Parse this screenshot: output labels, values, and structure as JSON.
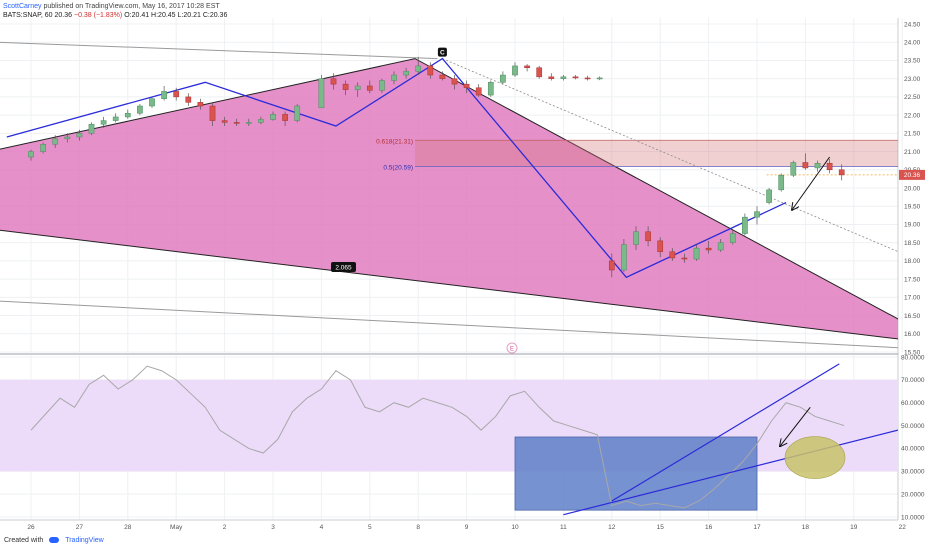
{
  "header": {
    "author": "ScottCarney",
    "published": "published on TradingView.com, May 16, 2017 10:28 EST",
    "symbol": "BATS:SNAP, 60",
    "last": "20.36",
    "change": "−0.38 (−1.83%)",
    "ohlc": "O:20.41  H:20.45  L:20.21  C:20.36"
  },
  "footer": {
    "created_with": "Created with",
    "brand": "TradingView"
  },
  "colors": {
    "pattern_fill": "#e07dbf",
    "zone_fill": "#d8787f",
    "pattern_line": "#2b2bd9",
    "up_candle": "#79b98a",
    "down_candle": "#d9534f",
    "rsi_band": "#ecdcf9",
    "rsi_box": "#5f7fc8",
    "ellipse": "#c8c26a"
  },
  "chart_data": [
    {
      "type": "candlestick",
      "title": "BATS:SNAP, 60",
      "ylim": [
        15.5,
        24.5
      ],
      "x_tick_labels": [
        "26",
        "27",
        "28",
        "May",
        "2",
        "3",
        "4",
        "5",
        "8",
        "9",
        "10",
        "11",
        "12",
        "15",
        "16",
        "17",
        "18",
        "19",
        "22"
      ],
      "y_tick_labels": [
        "24.50",
        "24.00",
        "23.50",
        "23.00",
        "22.50",
        "22.00",
        "21.50",
        "21.00",
        "20.50",
        "20.00",
        "19.50",
        "19.00",
        "18.50",
        "18.00",
        "17.50",
        "17.00",
        "16.50",
        "16.00",
        "15.50"
      ],
      "candles": [
        {
          "x": 0.0,
          "o": 20.85,
          "h": 21.05,
          "l": 20.75,
          "c": 21.0
        },
        {
          "x": 0.25,
          "o": 21.0,
          "h": 21.25,
          "l": 20.95,
          "c": 21.2
        },
        {
          "x": 0.5,
          "o": 21.2,
          "h": 21.45,
          "l": 21.1,
          "c": 21.35
        },
        {
          "x": 0.75,
          "o": 21.35,
          "h": 21.5,
          "l": 21.25,
          "c": 21.4
        },
        {
          "x": 1.0,
          "o": 21.4,
          "h": 21.6,
          "l": 21.3,
          "c": 21.5
        },
        {
          "x": 1.25,
          "o": 21.5,
          "h": 21.8,
          "l": 21.45,
          "c": 21.75
        },
        {
          "x": 1.5,
          "o": 21.75,
          "h": 21.95,
          "l": 21.65,
          "c": 21.85
        },
        {
          "x": 1.75,
          "o": 21.85,
          "h": 22.05,
          "l": 21.8,
          "c": 21.95
        },
        {
          "x": 2.0,
          "o": 21.95,
          "h": 22.15,
          "l": 21.9,
          "c": 22.05
        },
        {
          "x": 2.25,
          "o": 22.05,
          "h": 22.3,
          "l": 22.0,
          "c": 22.25
        },
        {
          "x": 2.5,
          "o": 22.25,
          "h": 22.5,
          "l": 22.2,
          "c": 22.45
        },
        {
          "x": 2.75,
          "o": 22.45,
          "h": 22.8,
          "l": 22.4,
          "c": 22.65
        },
        {
          "x": 3.0,
          "o": 22.65,
          "h": 22.75,
          "l": 22.4,
          "c": 22.5
        },
        {
          "x": 3.25,
          "o": 22.5,
          "h": 22.6,
          "l": 22.25,
          "c": 22.35
        },
        {
          "x": 3.5,
          "o": 22.35,
          "h": 22.45,
          "l": 22.15,
          "c": 22.25
        },
        {
          "x": 3.75,
          "o": 22.25,
          "h": 22.35,
          "l": 21.7,
          "c": 21.85
        },
        {
          "x": 4.0,
          "o": 21.85,
          "h": 21.95,
          "l": 21.7,
          "c": 21.8
        },
        {
          "x": 4.25,
          "o": 21.8,
          "h": 21.9,
          "l": 21.7,
          "c": 21.78
        },
        {
          "x": 4.5,
          "o": 21.78,
          "h": 21.9,
          "l": 21.7,
          "c": 21.8
        },
        {
          "x": 4.75,
          "o": 21.8,
          "h": 21.95,
          "l": 21.75,
          "c": 21.88
        },
        {
          "x": 5.0,
          "o": 21.88,
          "h": 22.1,
          "l": 21.85,
          "c": 22.02
        },
        {
          "x": 5.25,
          "o": 22.02,
          "h": 22.1,
          "l": 21.7,
          "c": 21.85
        },
        {
          "x": 5.5,
          "o": 21.85,
          "h": 22.3,
          "l": 21.8,
          "c": 22.25
        },
        {
          "x": 6.0,
          "o": 22.2,
          "h": 23.1,
          "l": 22.2,
          "c": 23.0
        },
        {
          "x": 6.25,
          "o": 23.0,
          "h": 23.15,
          "l": 22.7,
          "c": 22.85
        },
        {
          "x": 6.5,
          "o": 22.85,
          "h": 22.95,
          "l": 22.55,
          "c": 22.7
        },
        {
          "x": 6.75,
          "o": 22.7,
          "h": 22.9,
          "l": 22.5,
          "c": 22.8
        },
        {
          "x": 7.0,
          "o": 22.8,
          "h": 22.95,
          "l": 22.6,
          "c": 22.68
        },
        {
          "x": 7.25,
          "o": 22.68,
          "h": 23.0,
          "l": 22.6,
          "c": 22.95
        },
        {
          "x": 7.5,
          "o": 22.95,
          "h": 23.2,
          "l": 22.85,
          "c": 23.1
        },
        {
          "x": 7.75,
          "o": 23.1,
          "h": 23.3,
          "l": 23.0,
          "c": 23.2
        },
        {
          "x": 8.0,
          "o": 23.2,
          "h": 23.6,
          "l": 23.1,
          "c": 23.35
        },
        {
          "x": 8.25,
          "o": 23.35,
          "h": 23.45,
          "l": 23.0,
          "c": 23.1
        },
        {
          "x": 8.5,
          "o": 23.1,
          "h": 23.2,
          "l": 22.95,
          "c": 23.0
        },
        {
          "x": 8.75,
          "o": 23.0,
          "h": 23.1,
          "l": 22.7,
          "c": 22.85
        },
        {
          "x": 9.0,
          "o": 22.85,
          "h": 22.95,
          "l": 22.6,
          "c": 22.75
        },
        {
          "x": 9.25,
          "o": 22.75,
          "h": 22.85,
          "l": 22.5,
          "c": 22.55
        },
        {
          "x": 9.5,
          "o": 22.55,
          "h": 22.95,
          "l": 22.5,
          "c": 22.9
        },
        {
          "x": 9.75,
          "o": 22.9,
          "h": 23.2,
          "l": 22.85,
          "c": 23.1
        },
        {
          "x": 10.0,
          "o": 23.1,
          "h": 23.45,
          "l": 23.05,
          "c": 23.35
        },
        {
          "x": 10.25,
          "o": 23.35,
          "h": 23.4,
          "l": 23.2,
          "c": 23.3
        },
        {
          "x": 10.5,
          "o": 23.3,
          "h": 23.35,
          "l": 23.0,
          "c": 23.05
        },
        {
          "x": 10.75,
          "o": 23.05,
          "h": 23.15,
          "l": 22.95,
          "c": 23.0
        },
        {
          "x": 11.0,
          "o": 23.0,
          "h": 23.1,
          "l": 22.95,
          "c": 23.05
        },
        {
          "x": 11.25,
          "o": 23.05,
          "h": 23.1,
          "l": 22.98,
          "c": 23.02
        },
        {
          "x": 11.5,
          "o": 23.02,
          "h": 23.08,
          "l": 22.95,
          "c": 23.0
        },
        {
          "x": 11.75,
          "o": 23.0,
          "h": 23.06,
          "l": 22.96,
          "c": 23.02
        },
        {
          "x": 12.0,
          "o": 18.0,
          "h": 18.2,
          "l": 17.55,
          "c": 17.75
        },
        {
          "x": 12.25,
          "o": 17.75,
          "h": 18.6,
          "l": 17.7,
          "c": 18.45
        },
        {
          "x": 12.5,
          "o": 18.45,
          "h": 18.95,
          "l": 18.3,
          "c": 18.8
        },
        {
          "x": 12.75,
          "o": 18.8,
          "h": 18.95,
          "l": 18.4,
          "c": 18.55
        },
        {
          "x": 13.0,
          "o": 18.55,
          "h": 18.65,
          "l": 18.1,
          "c": 18.25
        },
        {
          "x": 13.25,
          "o": 18.25,
          "h": 18.35,
          "l": 18.0,
          "c": 18.08
        },
        {
          "x": 13.5,
          "o": 18.08,
          "h": 18.2,
          "l": 17.95,
          "c": 18.05
        },
        {
          "x": 13.75,
          "o": 18.05,
          "h": 18.45,
          "l": 18.0,
          "c": 18.35
        },
        {
          "x": 14.0,
          "o": 18.35,
          "h": 18.55,
          "l": 18.2,
          "c": 18.3
        },
        {
          "x": 14.25,
          "o": 18.3,
          "h": 18.6,
          "l": 18.25,
          "c": 18.5
        },
        {
          "x": 14.5,
          "o": 18.5,
          "h": 18.85,
          "l": 18.45,
          "c": 18.75
        },
        {
          "x": 14.75,
          "o": 18.75,
          "h": 19.3,
          "l": 18.7,
          "c": 19.2
        },
        {
          "x": 15.0,
          "o": 19.2,
          "h": 19.5,
          "l": 19.0,
          "c": 19.35
        },
        {
          "x": 15.25,
          "o": 19.6,
          "h": 20.0,
          "l": 19.55,
          "c": 19.95
        },
        {
          "x": 15.5,
          "o": 19.95,
          "h": 20.4,
          "l": 19.9,
          "c": 20.35
        },
        {
          "x": 15.75,
          "o": 20.35,
          "h": 20.75,
          "l": 20.3,
          "c": 20.7
        },
        {
          "x": 16.0,
          "o": 20.7,
          "h": 20.95,
          "l": 20.5,
          "c": 20.55
        },
        {
          "x": 16.25,
          "o": 20.55,
          "h": 20.75,
          "l": 20.45,
          "c": 20.68
        },
        {
          "x": 16.5,
          "o": 20.68,
          "h": 20.8,
          "l": 20.4,
          "c": 20.5
        },
        {
          "x": 16.75,
          "o": 20.5,
          "h": 20.65,
          "l": 20.21,
          "c": 20.36
        }
      ],
      "pattern": {
        "points": [
          {
            "label": "",
            "x": -0.5,
            "y": 21.4
          },
          {
            "label": "",
            "x": 3.6,
            "y": 22.9
          },
          {
            "label": "",
            "x": 6.3,
            "y": 21.7
          },
          {
            "label": "C",
            "x": 8.5,
            "y": 23.55
          },
          {
            "label": "",
            "x": 12.3,
            "y": 17.55
          },
          {
            "label": "",
            "x": 15.6,
            "y": 19.6
          }
        ],
        "projection_label": "E",
        "extension_label": "2.065",
        "retracement_labels": [
          "0.618(21.31)",
          "0.5(20.59)"
        ],
        "prz": [
          20.59,
          21.31
        ]
      }
    },
    {
      "type": "line",
      "title": "RSI",
      "ylim": [
        10,
        80
      ],
      "y_tick_labels": [
        "80.0000",
        "70.0000",
        "60.0000",
        "50.0000",
        "40.0000",
        "30.0000",
        "20.0000",
        "10.0000"
      ],
      "overbought_band": [
        30,
        70
      ],
      "values": [
        [
          0,
          48
        ],
        [
          0.3,
          55
        ],
        [
          0.6,
          62
        ],
        [
          0.9,
          58
        ],
        [
          1.2,
          68
        ],
        [
          1.5,
          72
        ],
        [
          1.8,
          66
        ],
        [
          2.1,
          70
        ],
        [
          2.4,
          76
        ],
        [
          2.7,
          74
        ],
        [
          3.0,
          70
        ],
        [
          3.3,
          64
        ],
        [
          3.6,
          58
        ],
        [
          3.9,
          48
        ],
        [
          4.2,
          44
        ],
        [
          4.5,
          40
        ],
        [
          4.8,
          38
        ],
        [
          5.1,
          44
        ],
        [
          5.4,
          56
        ],
        [
          5.7,
          62
        ],
        [
          6.0,
          66
        ],
        [
          6.3,
          74
        ],
        [
          6.6,
          70
        ],
        [
          6.9,
          58
        ],
        [
          7.2,
          56
        ],
        [
          7.5,
          60
        ],
        [
          7.8,
          58
        ],
        [
          8.1,
          62
        ],
        [
          8.4,
          60
        ],
        [
          8.7,
          58
        ],
        [
          9.0,
          54
        ],
        [
          9.3,
          48
        ],
        [
          9.6,
          54
        ],
        [
          9.9,
          63
        ],
        [
          10.2,
          65
        ],
        [
          10.5,
          58
        ],
        [
          10.8,
          52
        ],
        [
          11.1,
          50
        ],
        [
          11.4,
          48
        ],
        [
          11.7,
          46
        ],
        [
          12.0,
          15
        ],
        [
          12.3,
          17
        ],
        [
          12.6,
          15
        ],
        [
          12.9,
          16
        ],
        [
          13.2,
          15
        ],
        [
          13.5,
          14
        ],
        [
          13.8,
          17
        ],
        [
          14.1,
          22
        ],
        [
          14.4,
          28
        ],
        [
          14.7,
          34
        ],
        [
          15.0,
          42
        ],
        [
          15.3,
          52
        ],
        [
          15.6,
          60
        ],
        [
          15.9,
          58
        ],
        [
          16.2,
          54
        ],
        [
          16.5,
          52
        ],
        [
          16.8,
          50
        ]
      ]
    }
  ]
}
